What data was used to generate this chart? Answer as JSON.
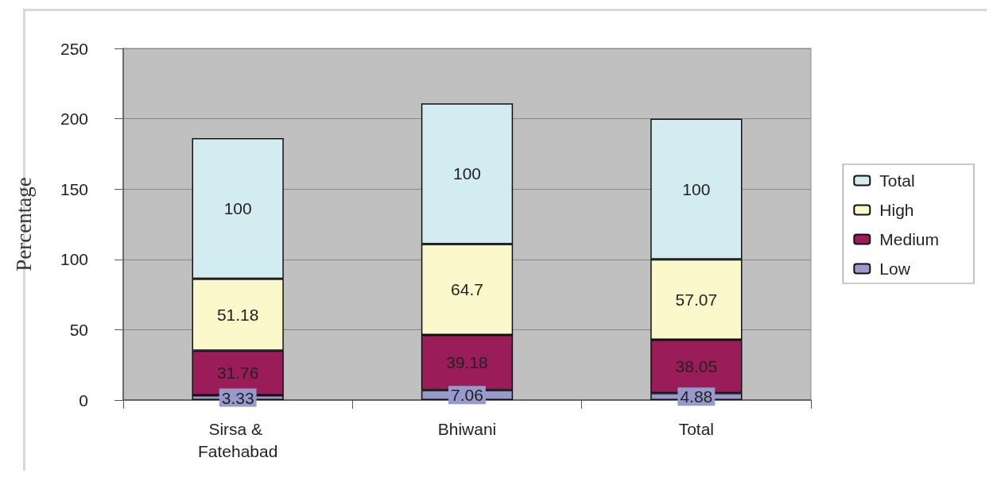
{
  "chart_data": {
    "type": "bar",
    "stacked": true,
    "ylabel": "Percentage",
    "categories": [
      "Sirsa & Fatehabad",
      "Bhiwani",
      "Total"
    ],
    "series": [
      {
        "name": "Low",
        "color": "#9999cc",
        "values": [
          3.33,
          7.06,
          4.88
        ]
      },
      {
        "name": "Medium",
        "color": "#9a1d5a",
        "values": [
          31.76,
          39.18,
          38.05
        ]
      },
      {
        "name": "High",
        "color": "#fbf8cc",
        "values": [
          51.18,
          64.7,
          57.07
        ]
      },
      {
        "name": "Total",
        "color": "#d3ecf2",
        "values": [
          100,
          100,
          100
        ]
      }
    ],
    "ylim": [
      0,
      250
    ],
    "yticks": [
      0,
      50,
      100,
      150,
      200,
      250
    ],
    "grid": "y",
    "legend": "right",
    "data_labels": true
  }
}
